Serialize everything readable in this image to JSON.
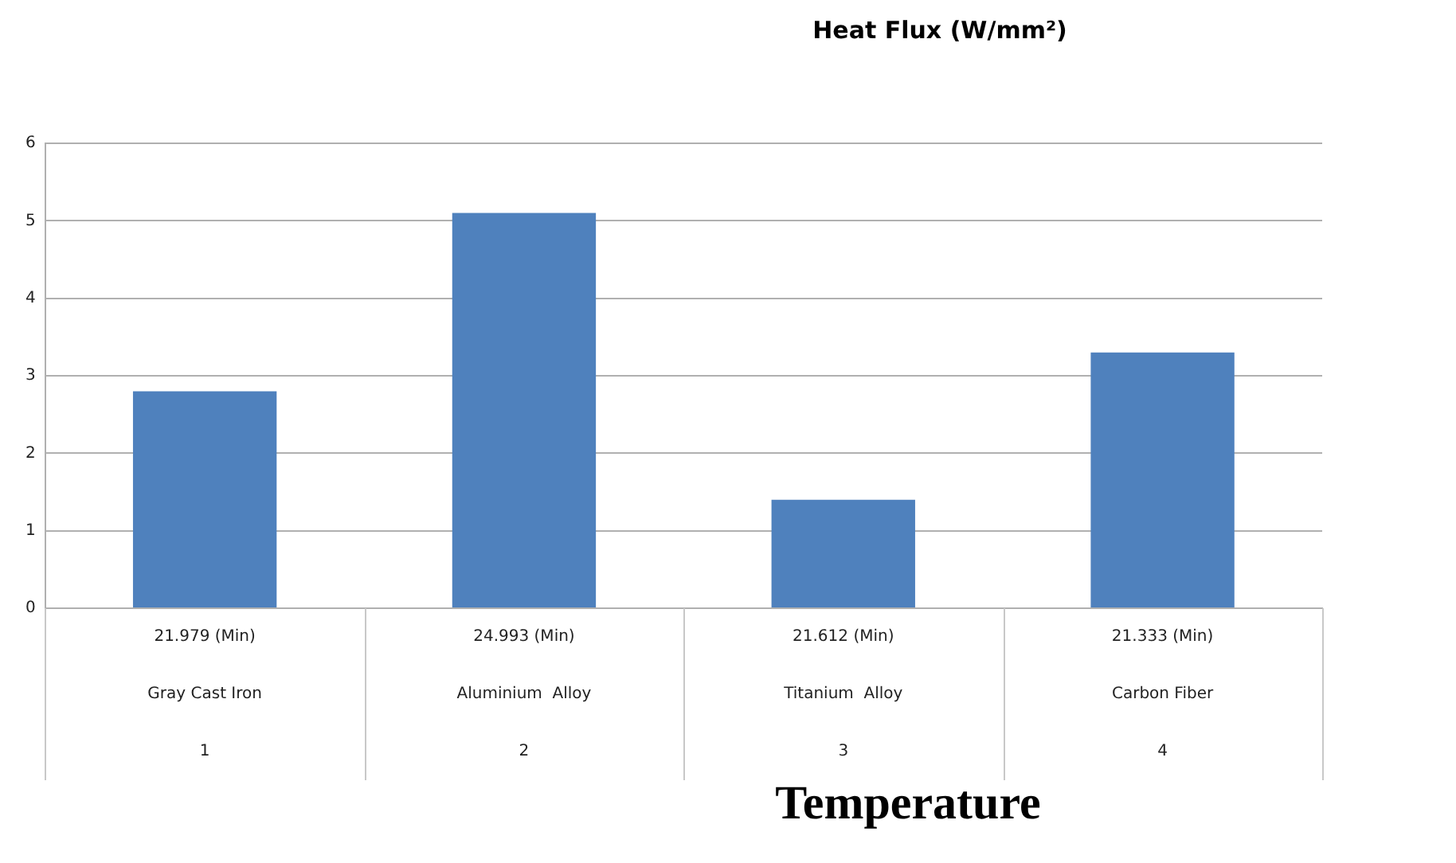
{
  "chart_data": {
    "type": "bar",
    "title": "Heat Flux (W/mm²)",
    "xlabel": "Temperature",
    "categories": [
      "21.979 (Min)\nGray Cast Iron\n1",
      "24.993 (Min)\nAluminium  Alloy\n2",
      "21.612 (Min)\nTitanium  Alloy\n3",
      "21.333 (Min)\nCarbon Fiber\n4"
    ],
    "values": [
      2.8,
      5.1,
      1.4,
      3.3
    ],
    "color": "#4f81bd",
    "ylim": [
      0,
      6
    ],
    "yticks": [
      0,
      1,
      2,
      3,
      4,
      5,
      6
    ],
    "grid": "y",
    "legend": false
  }
}
